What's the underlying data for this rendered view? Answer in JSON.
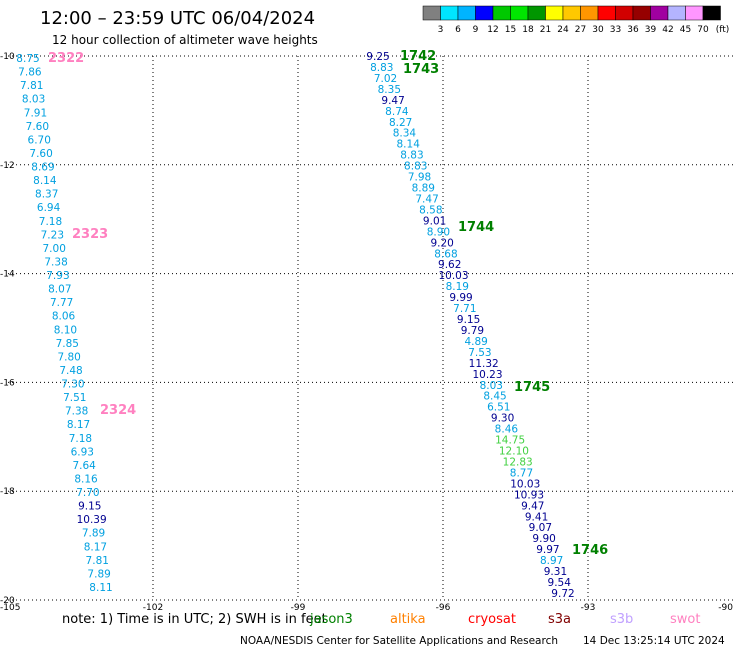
{
  "header": {
    "title": "12:00 – 23:59 UTC 06/04/2024",
    "subtitle": "12 hour collection of altimeter wave heights"
  },
  "colorbar": {
    "ticks": [
      "3",
      "6",
      "9",
      "12",
      "15",
      "18",
      "21",
      "24",
      "27",
      "30",
      "33",
      "36",
      "39",
      "42",
      "45",
      "70"
    ],
    "unit": "(ft)",
    "colors": [
      "#808080",
      "#00e5ff",
      "#00b4ff",
      "#0000ff",
      "#00c800",
      "#00e600",
      "#009600",
      "#ffff00",
      "#ffc800",
      "#ff9600",
      "#ff0000",
      "#d20000",
      "#960000",
      "#a000a0",
      "#b4b4ff",
      "#ff96ff",
      "#000000"
    ]
  },
  "axes": {
    "lon_labels": [
      "-105",
      "-102",
      "-99",
      "-96",
      "-93",
      "-90"
    ],
    "lat_labels": [
      "-10",
      "-12",
      "-14",
      "-16",
      "-18",
      "-20"
    ]
  },
  "tracks": [
    {
      "name": "2322",
      "color": "#ff80c0",
      "label": "2322"
    },
    {
      "name": "2323",
      "color": "#ff80c0",
      "label": "2323"
    },
    {
      "name": "2324",
      "color": "#ff80c0",
      "label": "2324"
    },
    {
      "name": "1742",
      "color": "#008000",
      "label": "1742"
    },
    {
      "name": "1743",
      "color": "#008000",
      "label": "1743"
    },
    {
      "name": "1744",
      "color": "#008000",
      "label": "1744"
    },
    {
      "name": "1745",
      "color": "#008000",
      "label": "1745"
    },
    {
      "name": "1746",
      "color": "#008000",
      "label": "1746"
    }
  ],
  "colors": {
    "light": "#00a0e0",
    "dark": "#000090",
    "green": "#40d040"
  },
  "left_values": [
    "8.75",
    "7.86",
    "7.81",
    "8.03",
    "7.91",
    "7.60",
    "6.70",
    "7.60",
    "8.69",
    "8.14",
    "8.37",
    "6.94",
    "7.18",
    "7.23",
    "7.00",
    "7.38",
    "7.93",
    "8.07",
    "7.77",
    "8.06",
    "8.10",
    "7.85",
    "7.80",
    "7.48",
    "7.30",
    "7.51",
    "7.38",
    "8.17",
    "7.18",
    "6.93",
    "7.64",
    "8.16",
    "7.70",
    "9.15",
    "10.39",
    "7.89",
    "8.17",
    "7.81",
    "7.89",
    "8.11"
  ],
  "right_values": [
    "9.25",
    "8.83",
    "7.02",
    "8.35",
    "9.47",
    "8.74",
    "8.27",
    "8.34",
    "8.14",
    "8.83",
    "8.83",
    "7.98",
    "8.89",
    "7.47",
    "8.58",
    "9.01",
    "8.90",
    "9.20",
    "8.68",
    "9.62",
    "10.03",
    "8.19",
    "9.99",
    "7.71",
    "9.15",
    "9.79",
    "4.89",
    "7.53",
    "11.32",
    "10.23",
    "8.03",
    "8.45",
    "6.51",
    "9.30",
    "8.46",
    "14.75",
    "12.10",
    "12.83",
    "8.77",
    "10.03",
    "10.93",
    "9.47",
    "9.41",
    "9.07",
    "9.90",
    "9.97",
    "8.97",
    "9.31",
    "9.54",
    "9.72"
  ],
  "footer": {
    "note": "note:  1) Time is in UTC; 2) SWH is in feet",
    "satellites": [
      {
        "name": "jason3",
        "color": "#008000"
      },
      {
        "name": "altika",
        "color": "#ff8000"
      },
      {
        "name": "cryosat",
        "color": "#ff0000"
      },
      {
        "name": "s3a",
        "color": "#800000"
      },
      {
        "name": "s3b",
        "color": "#c0a0ff"
      },
      {
        "name": "swot",
        "color": "#ff80c0"
      }
    ],
    "credit": "NOAA/NESDIS Center for Satellite Applications and Research",
    "updated": "14 Dec 13:25:14 UTC 2024"
  }
}
